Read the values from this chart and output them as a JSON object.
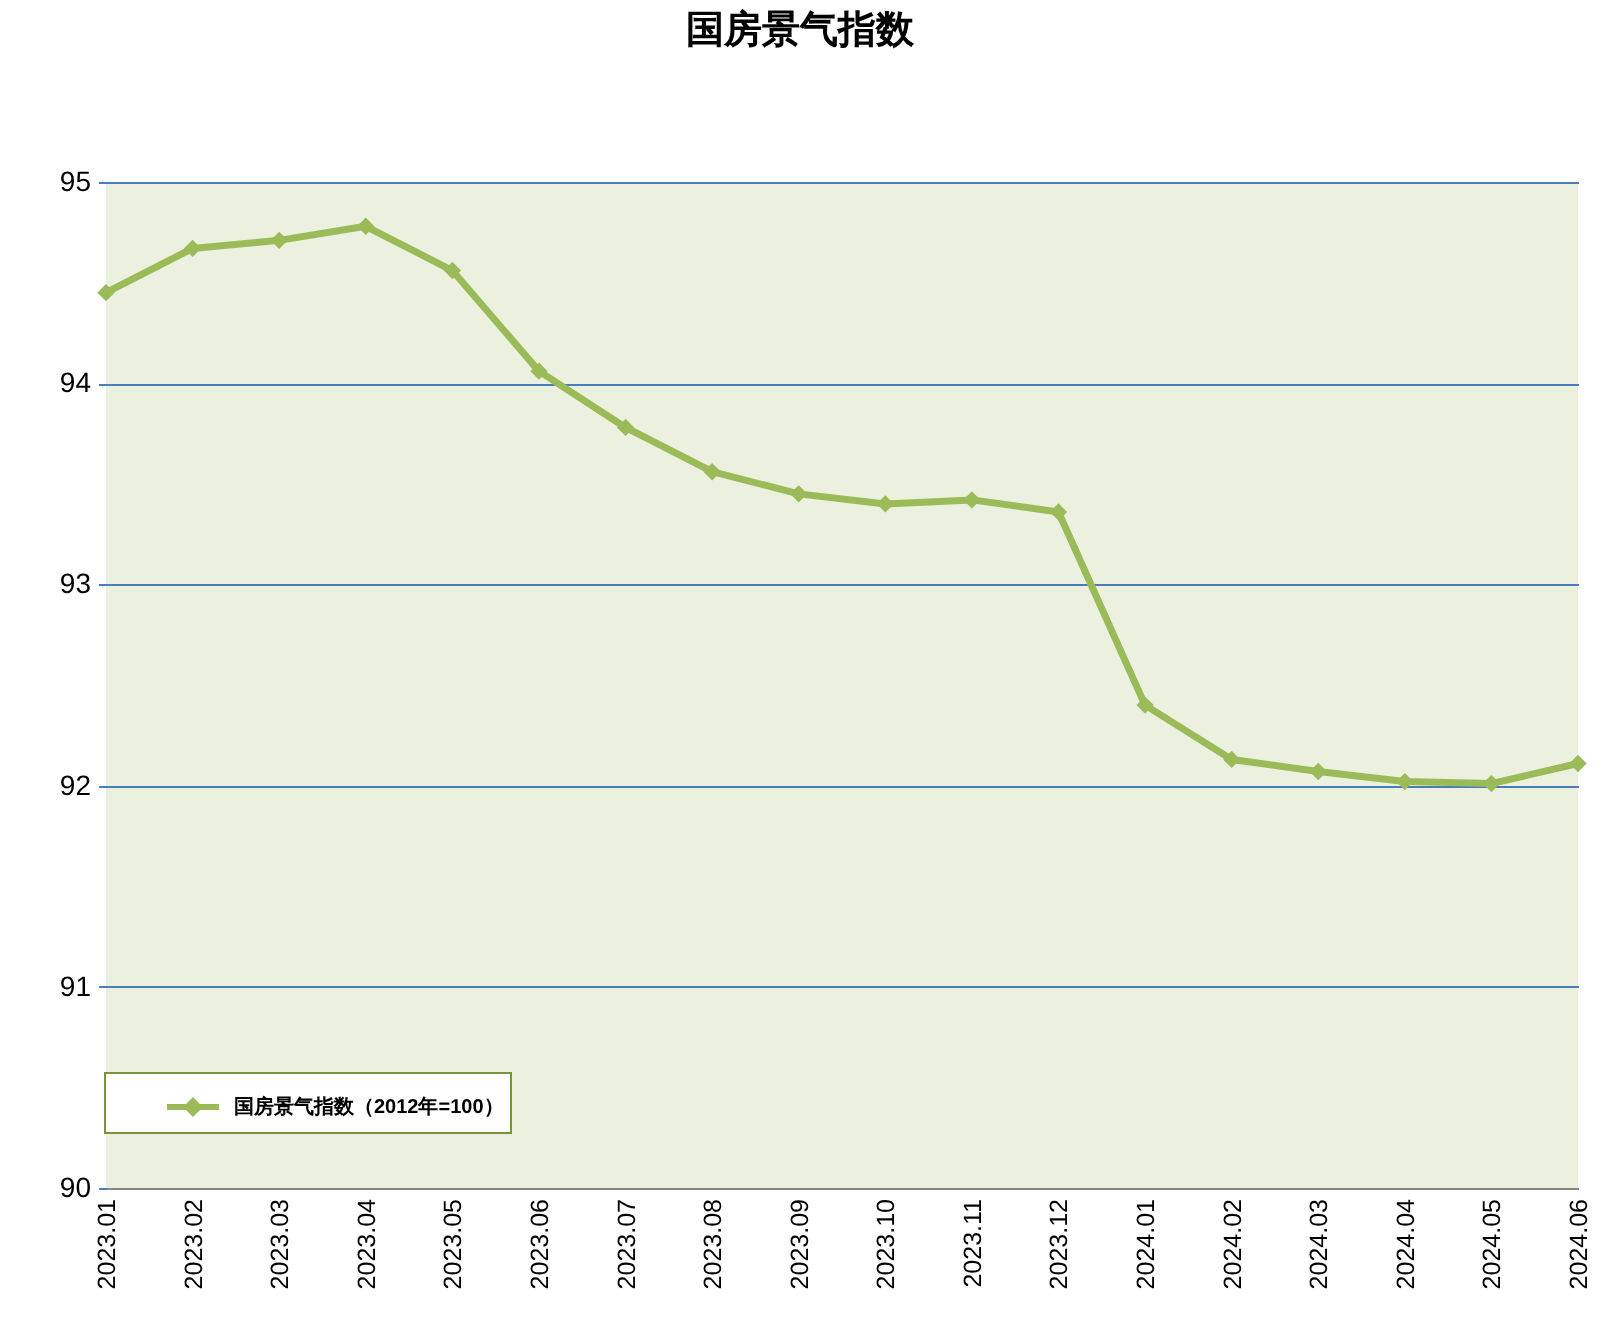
{
  "chart_data": {
    "type": "line",
    "title": "国房景气指数",
    "categories": [
      "2023.01",
      "2023.02",
      "2023.03",
      "2023.04",
      "2023.05",
      "2023.06",
      "2023.07",
      "2023.08",
      "2023.09",
      "2023.10",
      "2023.11",
      "2023.12",
      "2024.01",
      "2024.02",
      "2024.03",
      "2024.04",
      "2024.05",
      "2024.06"
    ],
    "series": [
      {
        "name": "国房景气指数（2012年=100）",
        "color": "#9bbb59",
        "values": [
          94.45,
          94.67,
          94.71,
          94.78,
          94.56,
          94.06,
          93.78,
          93.56,
          93.45,
          93.4,
          93.42,
          93.36,
          92.4,
          92.13,
          92.07,
          92.02,
          92.01,
          92.11
        ]
      }
    ],
    "ylim": [
      90,
      95
    ],
    "yticks": [
      90,
      91,
      92,
      93,
      94,
      95
    ],
    "grid": "y",
    "legend": "bottom left",
    "marker": "diamond",
    "line_style": "solid"
  }
}
